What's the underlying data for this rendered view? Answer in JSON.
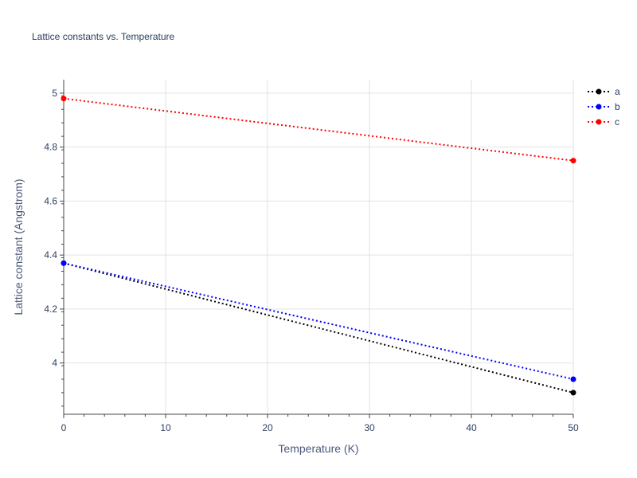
{
  "chart_data": {
    "type": "line",
    "title": "Lattice constants vs. Temperature",
    "xlabel": "Temperature (K)",
    "ylabel": "Lattice constant (Angstrom)",
    "x": [
      0,
      50
    ],
    "xlim": [
      0,
      50
    ],
    "ylim": [
      3.81,
      5.05
    ],
    "xticks": [
      0,
      10,
      20,
      30,
      40,
      50
    ],
    "xtick_labels": [
      "0",
      "10",
      "20",
      "30",
      "40",
      "50"
    ],
    "yticks": [
      4,
      4.2,
      4.4,
      4.6,
      4.8,
      5
    ],
    "ytick_labels": [
      "4",
      "4.2",
      "4.4",
      "4.6",
      "4.8",
      "5"
    ],
    "grid": true,
    "legend_position": "top-right",
    "line_style": "dotted",
    "series": [
      {
        "name": "a",
        "color": "#000000",
        "values": [
          4.37,
          3.89
        ]
      },
      {
        "name": "b",
        "color": "#0000ff",
        "values": [
          4.37,
          3.94
        ]
      },
      {
        "name": "c",
        "color": "#ff0000",
        "values": [
          4.98,
          4.75
        ]
      }
    ]
  }
}
